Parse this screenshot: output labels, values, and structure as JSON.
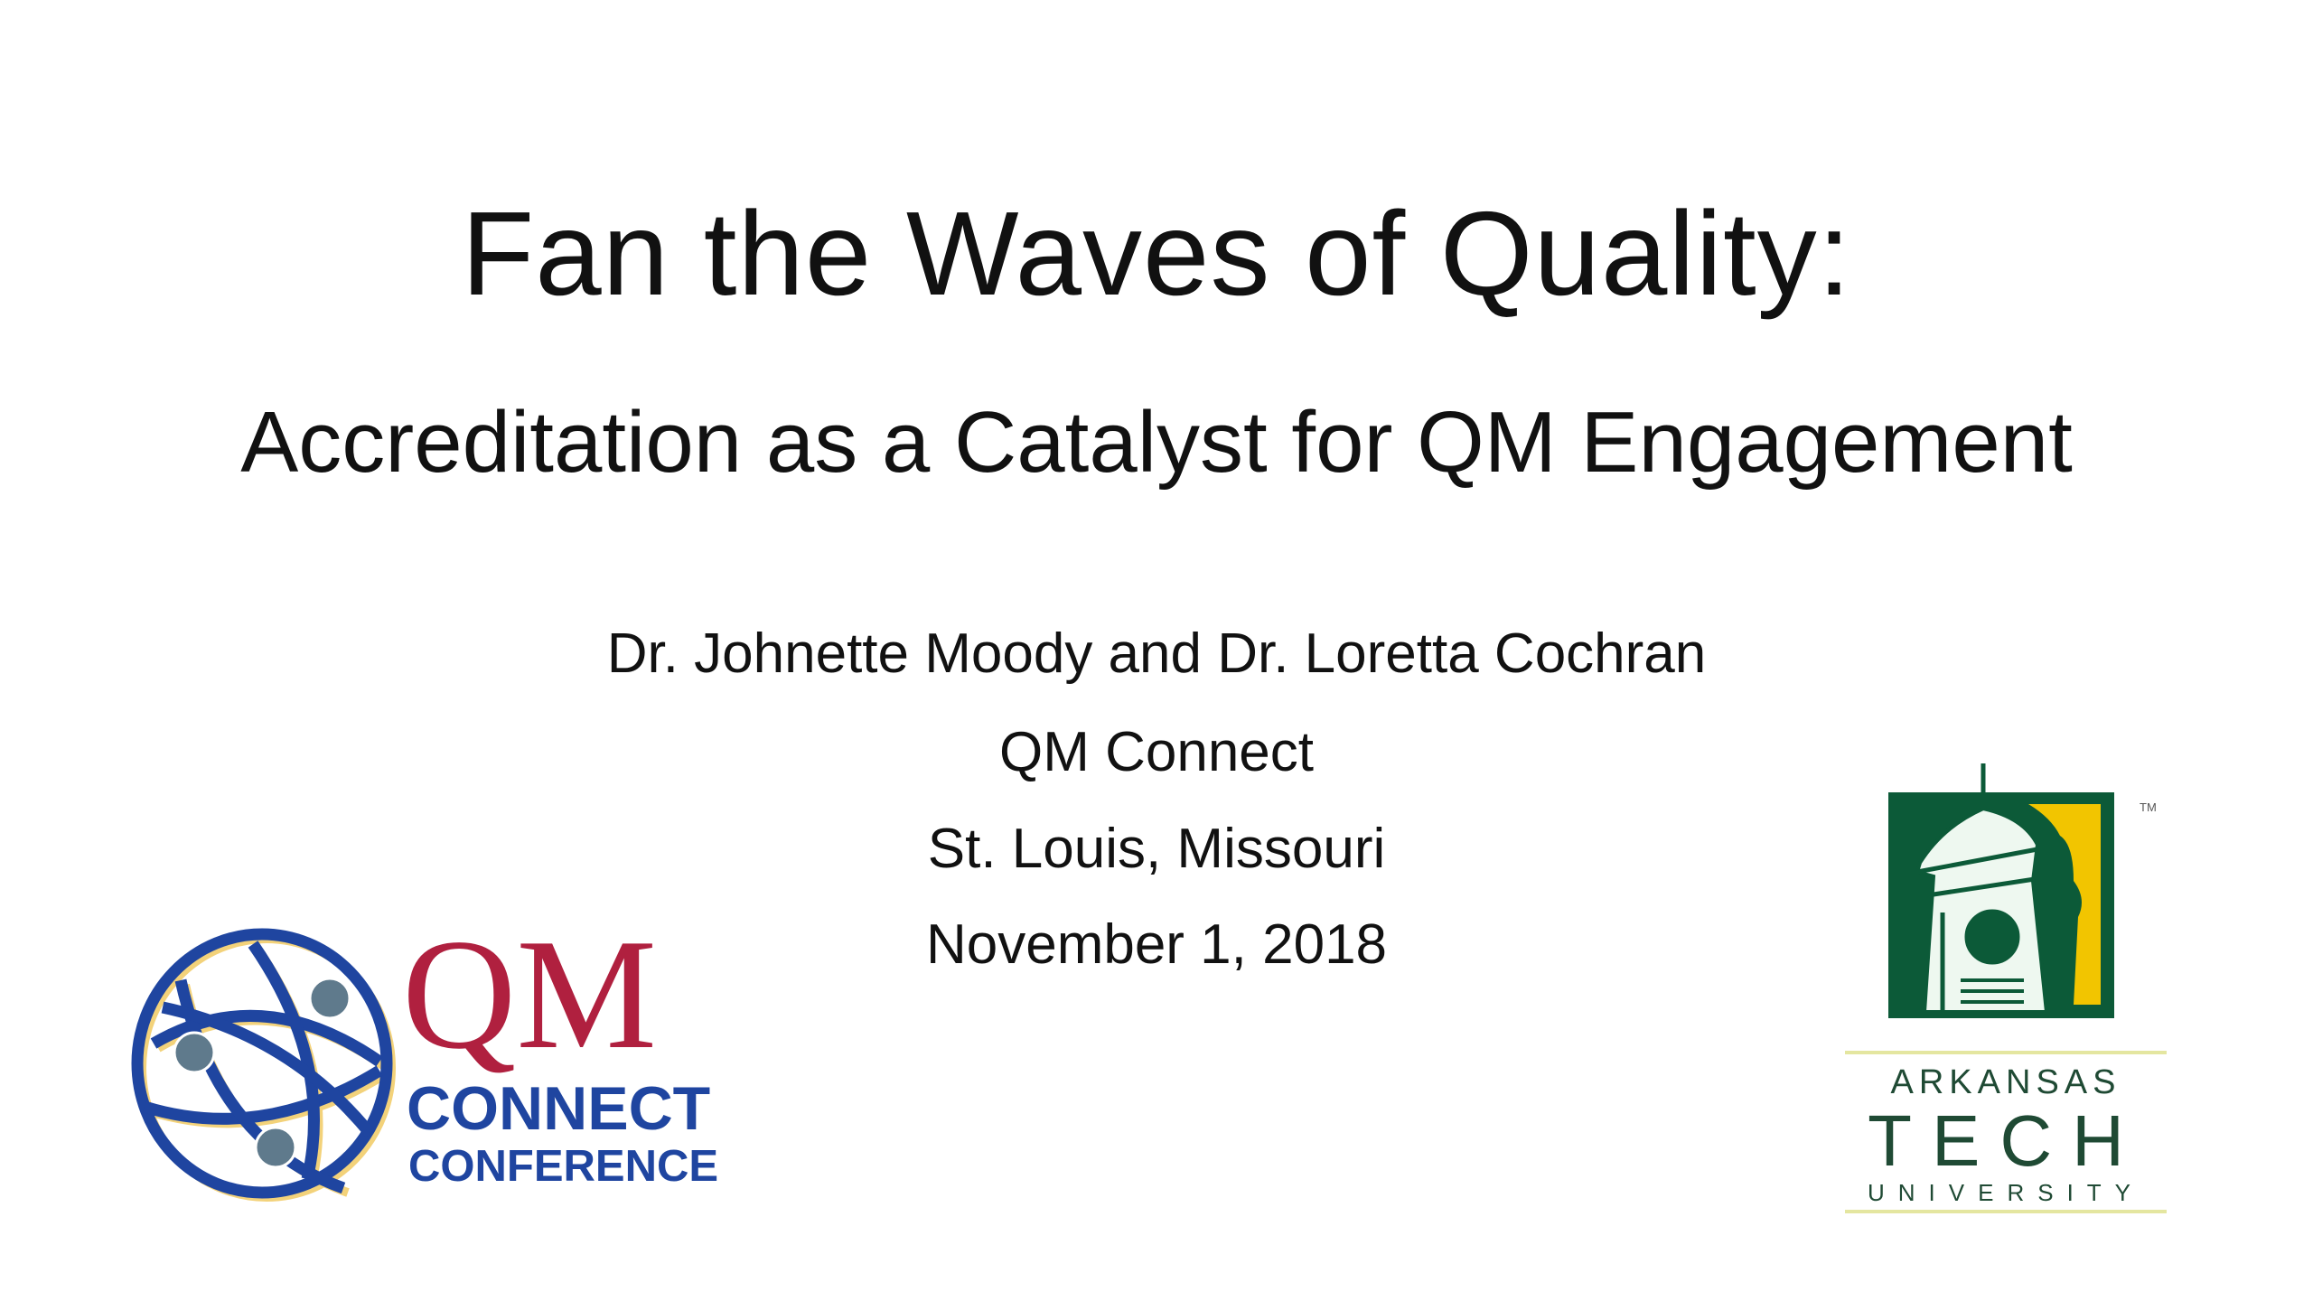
{
  "slide": {
    "title": "Fan the Waves of Quality:",
    "subtitle": "Accreditation as a Catalyst for QM Engagement",
    "lines": [
      "Dr. Johnette Moody and Dr. Loretta Cochran",
      "QM Connect",
      "St. Louis, Missouri",
      "November 1, 2018"
    ]
  },
  "logos": {
    "qm": {
      "text": "QM",
      "line1": "CONNECT",
      "line2": "CONFERENCE"
    },
    "atu": {
      "line1": "ARKANSAS",
      "line2": "TECH",
      "line3": "UNIVERSITY",
      "tm": "TM"
    }
  },
  "colors": {
    "qm_red": "#b0203f",
    "qm_blue": "#1f45a0",
    "qm_gold": "#f3d27a",
    "node_gray": "#5f7a8c",
    "atu_green": "#0c5a38",
    "atu_yellow": "#f2c500"
  }
}
